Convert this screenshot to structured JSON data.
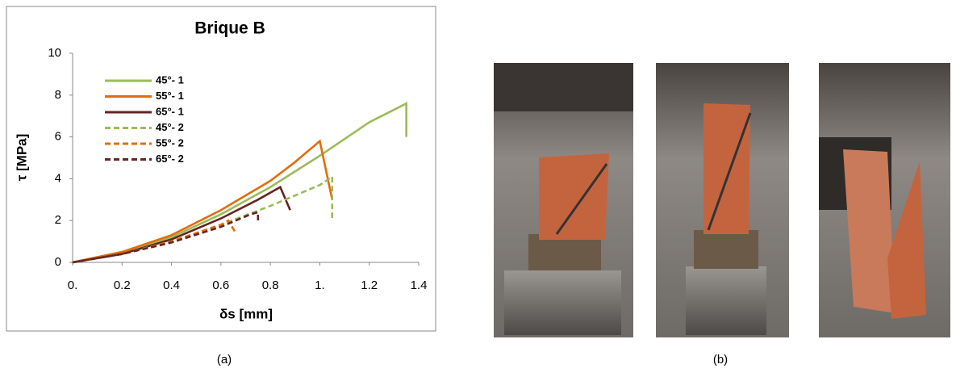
{
  "chart_data": {
    "type": "line",
    "title": "Brique B",
    "x_label": "δs [mm]",
    "y_label": "τ [MPa]",
    "xlim": [
      0,
      1.4
    ],
    "xticks": [
      {
        "value": 0,
        "label": "0."
      },
      0.2,
      0.4,
      0.6,
      0.8,
      {
        "value": 1,
        "label": "1."
      },
      1.2,
      1.4
    ],
    "ylim": [
      0,
      10
    ],
    "yticks": [
      0,
      2,
      4,
      6,
      8,
      10
    ],
    "grid": false,
    "legend": "upper left",
    "series": [
      {
        "name": "45°- 1",
        "color": "#9bbb59",
        "line_style": "solid",
        "x": [
          0,
          0.2,
          0.4,
          0.6,
          0.8,
          1.0,
          1.2,
          1.35,
          1.35
        ],
        "values": [
          0,
          0.5,
          1.2,
          2.3,
          3.6,
          5.1,
          6.7,
          7.6,
          6.0
        ]
      },
      {
        "name": "55°- 1",
        "color": "#e46c0a",
        "line_style": "solid",
        "x": [
          0,
          0.2,
          0.4,
          0.6,
          0.8,
          0.9,
          1.0,
          1.05
        ],
        "values": [
          0,
          0.5,
          1.3,
          2.5,
          3.9,
          4.8,
          5.8,
          3.0
        ]
      },
      {
        "name": "65°- 1",
        "color": "#632523",
        "line_style": "solid",
        "x": [
          0,
          0.2,
          0.4,
          0.6,
          0.75,
          0.84,
          0.88
        ],
        "values": [
          0,
          0.4,
          1.1,
          2.1,
          3.0,
          3.6,
          2.5
        ]
      },
      {
        "name": "45°- 2",
        "color": "#9bbb59",
        "line_style": "dashed",
        "x": [
          0,
          0.2,
          0.4,
          0.6,
          0.8,
          1.0,
          1.05,
          1.05
        ],
        "values": [
          0,
          0.4,
          1.0,
          1.8,
          2.7,
          3.7,
          4.1,
          2.1
        ]
      },
      {
        "name": "55°- 2",
        "color": "#e46c0a",
        "line_style": "dashed",
        "x": [
          0,
          0.2,
          0.4,
          0.6,
          0.63,
          0.66
        ],
        "values": [
          0,
          0.4,
          1.0,
          1.8,
          2.0,
          1.4
        ]
      },
      {
        "name": "65°- 2",
        "color": "#632523",
        "line_style": "dashed",
        "x": [
          0,
          0.2,
          0.4,
          0.6,
          0.72,
          0.75,
          0.75
        ],
        "values": [
          0,
          0.4,
          0.95,
          1.7,
          2.3,
          2.4,
          1.9
        ]
      }
    ]
  },
  "captions": [
    "(a)",
    "(b)"
  ]
}
